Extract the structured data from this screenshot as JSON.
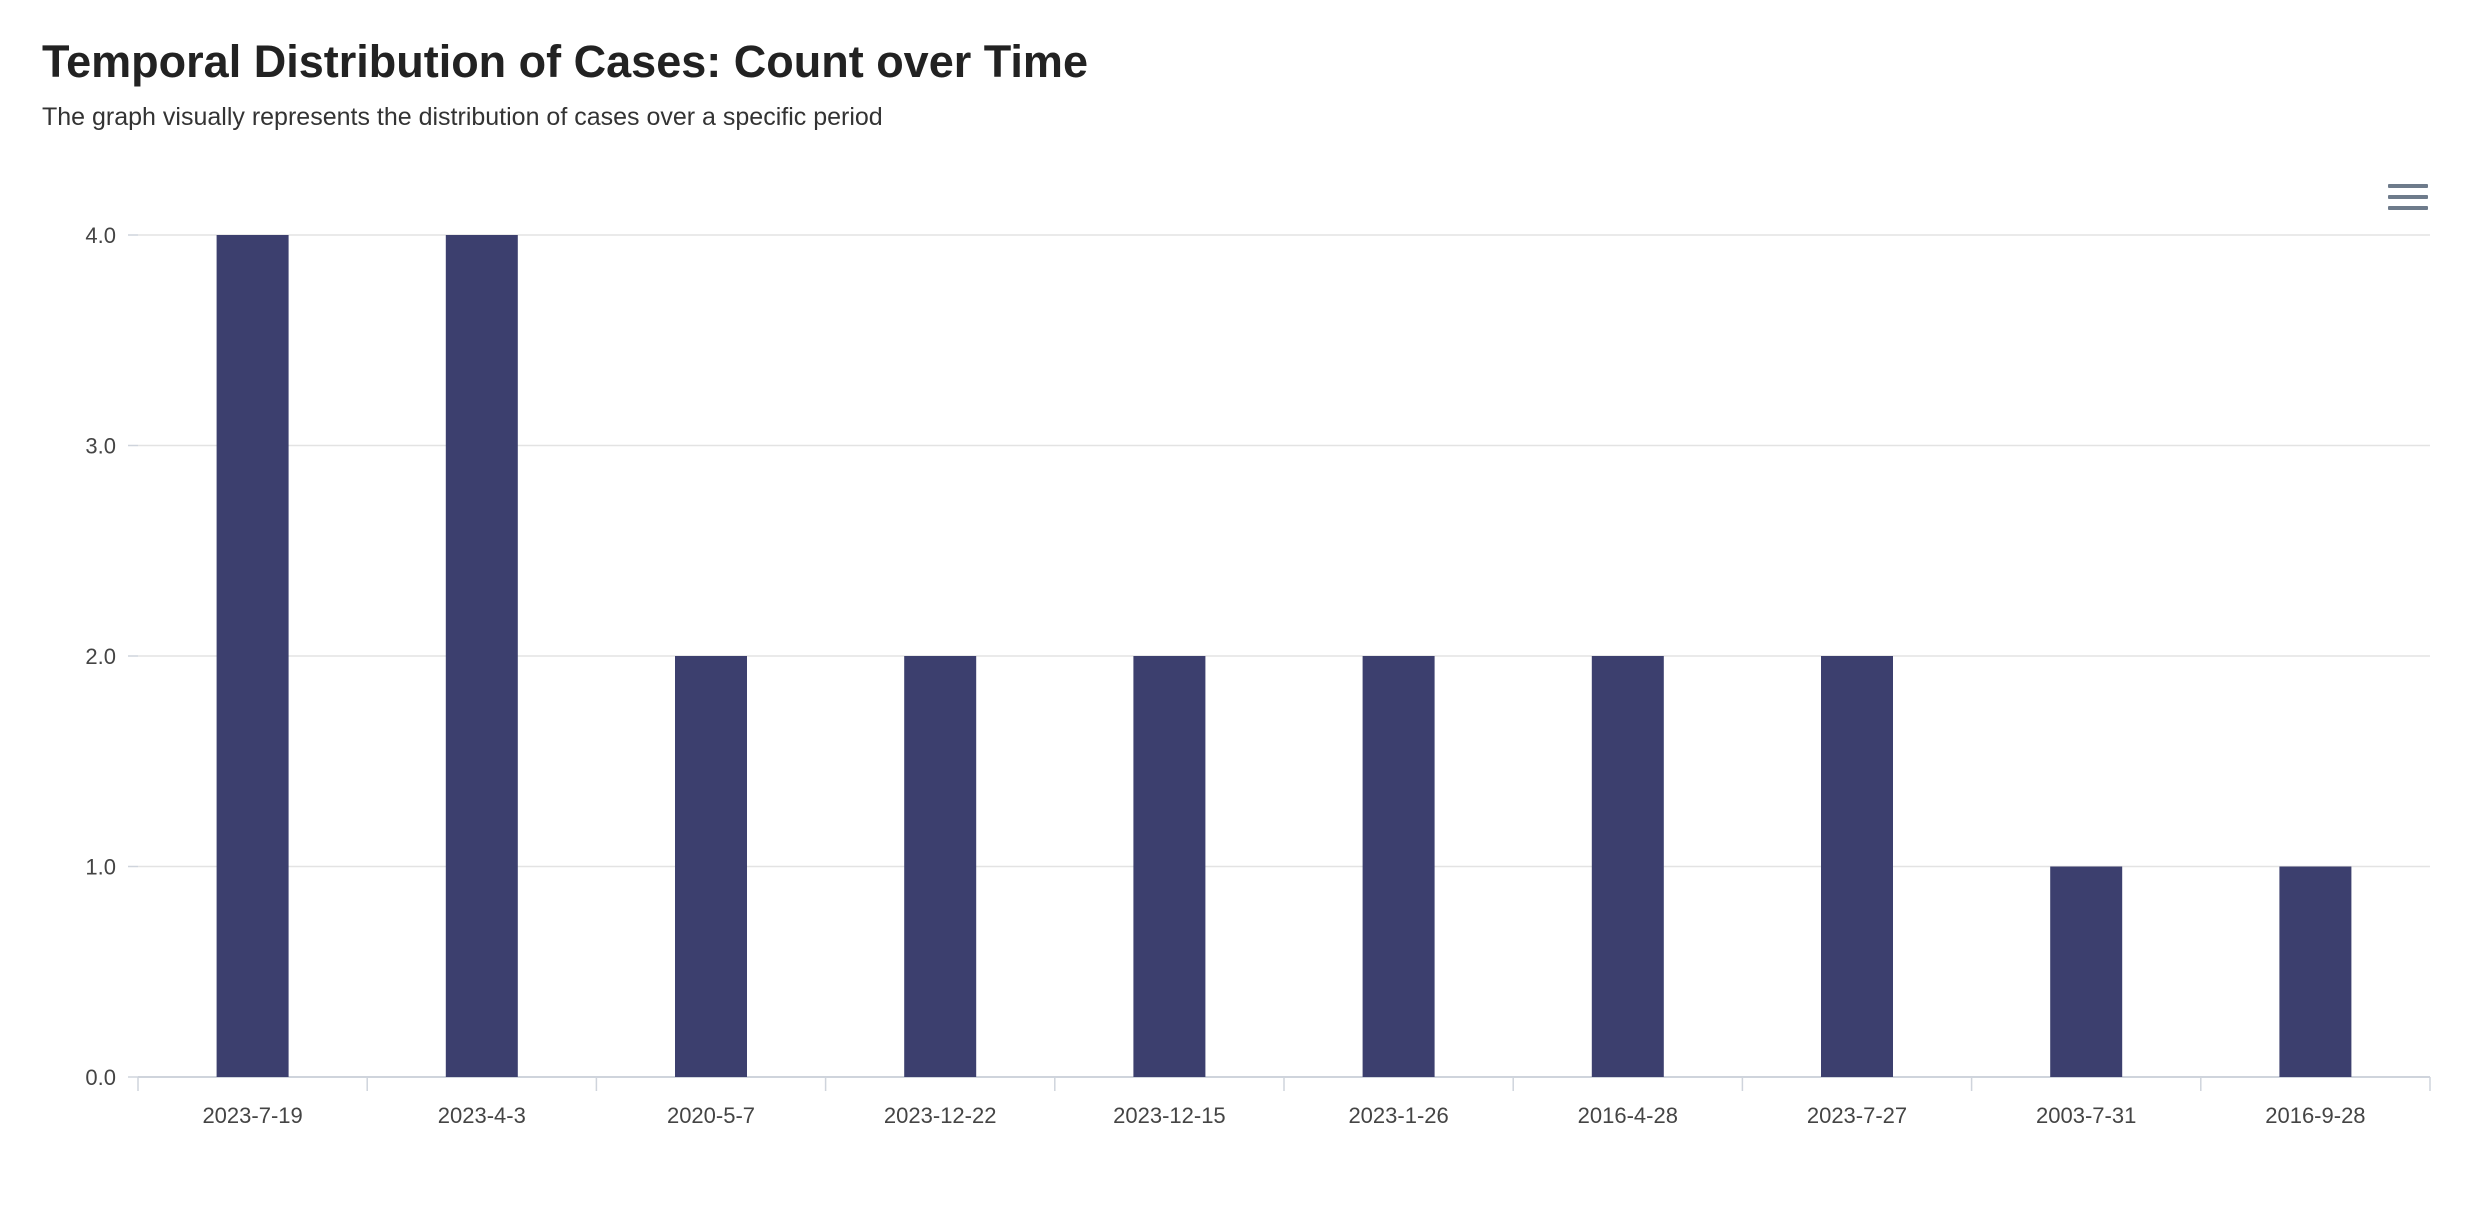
{
  "header": {
    "title": "Temporal Distribution of Cases: Count over Time",
    "subtitle": "The graph visually represents the distribution of cases over a specific period"
  },
  "menu": {
    "icon": "hamburger-menu-icon"
  },
  "colors": {
    "bar": "#3c3f6e",
    "grid": "#e3e3e3",
    "axis": "#cfd4dc"
  },
  "chart_data": {
    "type": "bar",
    "title": "Temporal Distribution of Cases: Count over Time",
    "subtitle": "The graph visually represents the distribution of cases over a specific period",
    "categories": [
      "2023-7-19",
      "2023-4-3",
      "2020-5-7",
      "2023-12-22",
      "2023-12-15",
      "2023-1-26",
      "2016-4-28",
      "2023-7-27",
      "2003-7-31",
      "2016-9-28"
    ],
    "values": [
      4,
      4,
      2,
      2,
      2,
      2,
      2,
      2,
      1,
      1
    ],
    "ylim": [
      0,
      4
    ],
    "yticks": [
      "0.0",
      "1.0",
      "2.0",
      "3.0",
      "4.0"
    ],
    "xlabel": "",
    "ylabel": "",
    "grid": true,
    "legend": "none"
  }
}
